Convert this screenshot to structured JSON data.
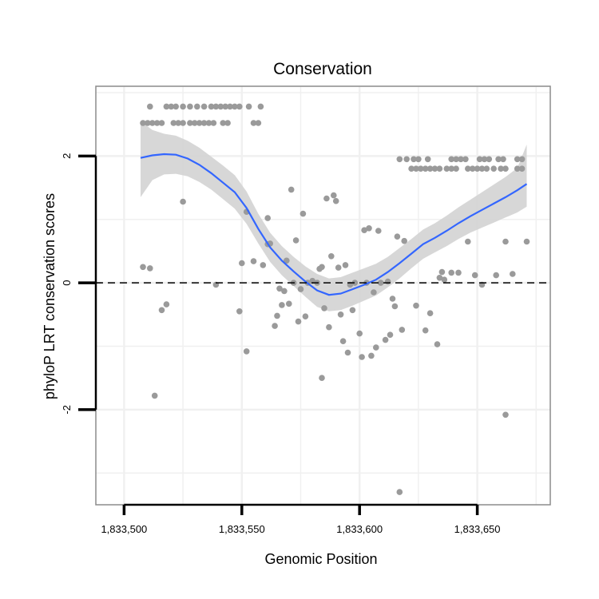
{
  "chart_data": {
    "type": "scatter",
    "title": "Conservation",
    "xlabel": "Genomic Position",
    "ylabel": "phyloP LRT conservation scores",
    "xlim": [
      1833488,
      1833681
    ],
    "ylim": [
      -3.5,
      3.1
    ],
    "x_ticks": [
      {
        "value": 1833500,
        "label": "1,833,500"
      },
      {
        "value": 1833550,
        "label": "1,833,550"
      },
      {
        "value": 1833600,
        "label": "1,833,600"
      },
      {
        "value": 1833650,
        "label": "1,833,650"
      }
    ],
    "y_ticks": [
      {
        "value": -2,
        "label": "-2"
      },
      {
        "value": 0,
        "label": "0"
      },
      {
        "value": 2,
        "label": "2"
      }
    ],
    "x_minor": [
      1833525,
      1833575,
      1833625,
      1833675
    ],
    "y_minor": [
      -3,
      -1,
      1,
      3
    ],
    "grid": true,
    "reference_line": {
      "y": 0,
      "style": "dashed"
    },
    "colors": {
      "points": "#9a9a9a",
      "smooth": "#3366ff",
      "band": "#d3d3d3",
      "grid": "#f0f0f0",
      "panel_border": "#8c8c8c"
    },
    "points": [
      [
        1833508,
        2.52
      ],
      [
        1833510,
        2.52
      ],
      [
        1833512,
        2.52
      ],
      [
        1833514,
        2.52
      ],
      [
        1833516,
        2.52
      ],
      [
        1833521,
        2.52
      ],
      [
        1833523,
        2.52
      ],
      [
        1833525,
        2.52
      ],
      [
        1833528,
        2.52
      ],
      [
        1833530,
        2.52
      ],
      [
        1833532,
        2.52
      ],
      [
        1833534,
        2.52
      ],
      [
        1833536,
        2.52
      ],
      [
        1833538,
        2.52
      ],
      [
        1833542,
        2.52
      ],
      [
        1833544,
        2.52
      ],
      [
        1833555,
        2.52
      ],
      [
        1833557,
        2.52
      ],
      [
        1833511,
        2.78
      ],
      [
        1833518,
        2.78
      ],
      [
        1833520,
        2.78
      ],
      [
        1833522,
        2.78
      ],
      [
        1833525,
        2.78
      ],
      [
        1833528,
        2.78
      ],
      [
        1833531,
        2.78
      ],
      [
        1833534,
        2.78
      ],
      [
        1833537,
        2.78
      ],
      [
        1833539,
        2.78
      ],
      [
        1833541,
        2.78
      ],
      [
        1833543,
        2.78
      ],
      [
        1833545,
        2.78
      ],
      [
        1833547,
        2.78
      ],
      [
        1833549,
        2.78
      ],
      [
        1833553,
        2.78
      ],
      [
        1833558,
        2.78
      ],
      [
        1833617,
        1.95
      ],
      [
        1833620,
        1.95
      ],
      [
        1833623,
        1.95
      ],
      [
        1833625,
        1.95
      ],
      [
        1833629,
        1.95
      ],
      [
        1833639,
        1.95
      ],
      [
        1833641,
        1.95
      ],
      [
        1833643,
        1.95
      ],
      [
        1833645,
        1.95
      ],
      [
        1833651,
        1.95
      ],
      [
        1833653,
        1.95
      ],
      [
        1833655,
        1.95
      ],
      [
        1833659,
        1.95
      ],
      [
        1833661,
        1.95
      ],
      [
        1833667,
        1.95
      ],
      [
        1833669,
        1.95
      ],
      [
        1833622,
        1.8
      ],
      [
        1833624,
        1.8
      ],
      [
        1833626,
        1.8
      ],
      [
        1833628,
        1.8
      ],
      [
        1833630,
        1.8
      ],
      [
        1833632,
        1.8
      ],
      [
        1833634,
        1.8
      ],
      [
        1833637,
        1.8
      ],
      [
        1833639,
        1.8
      ],
      [
        1833641,
        1.8
      ],
      [
        1833646,
        1.8
      ],
      [
        1833648,
        1.8
      ],
      [
        1833650,
        1.8
      ],
      [
        1833652,
        1.8
      ],
      [
        1833654,
        1.8
      ],
      [
        1833657,
        1.8
      ],
      [
        1833660,
        1.8
      ],
      [
        1833662,
        1.8
      ],
      [
        1833667,
        1.8
      ],
      [
        1833669,
        1.8
      ],
      [
        1833508,
        0.25
      ],
      [
        1833511,
        0.23
      ],
      [
        1833513,
        -1.78
      ],
      [
        1833516,
        -0.43
      ],
      [
        1833518,
        -0.34
      ],
      [
        1833525,
        1.28
      ],
      [
        1833539,
        -0.03
      ],
      [
        1833549,
        -0.45
      ],
      [
        1833550,
        0.31
      ],
      [
        1833552,
        1.12
      ],
      [
        1833552,
        -1.08
      ],
      [
        1833555,
        0.34
      ],
      [
        1833559,
        0.28
      ],
      [
        1833561,
        0.61
      ],
      [
        1833561,
        1.02
      ],
      [
        1833562,
        0.62
      ],
      [
        1833564,
        -0.68
      ],
      [
        1833565,
        -0.52
      ],
      [
        1833566,
        -0.09
      ],
      [
        1833567,
        -0.35
      ],
      [
        1833568,
        -0.13
      ],
      [
        1833569,
        0.35
      ],
      [
        1833570,
        -0.33
      ],
      [
        1833571,
        1.47
      ],
      [
        1833572,
        0.0
      ],
      [
        1833573,
        0.67
      ],
      [
        1833574,
        -0.61
      ],
      [
        1833575,
        -0.1
      ],
      [
        1833576,
        1.09
      ],
      [
        1833577,
        -0.53
      ],
      [
        1833578,
        0.0
      ],
      [
        1833580,
        0.03
      ],
      [
        1833582,
        0.0
      ],
      [
        1833583,
        0.22
      ],
      [
        1833584,
        0.25
      ],
      [
        1833584,
        -1.5
      ],
      [
        1833585,
        -0.4
      ],
      [
        1833586,
        1.33
      ],
      [
        1833587,
        -0.7
      ],
      [
        1833588,
        0.42
      ],
      [
        1833589,
        1.38
      ],
      [
        1833590,
        1.29
      ],
      [
        1833591,
        0.24
      ],
      [
        1833592,
        -0.5
      ],
      [
        1833593,
        -0.92
      ],
      [
        1833594,
        0.28
      ],
      [
        1833595,
        -1.1
      ],
      [
        1833596,
        -0.03
      ],
      [
        1833597,
        -0.43
      ],
      [
        1833598,
        0.0
      ],
      [
        1833600,
        -0.8
      ],
      [
        1833601,
        -1.17
      ],
      [
        1833602,
        0.83
      ],
      [
        1833603,
        0.0
      ],
      [
        1833604,
        0.86
      ],
      [
        1833605,
        -1.15
      ],
      [
        1833606,
        -0.15
      ],
      [
        1833607,
        -1.02
      ],
      [
        1833608,
        0.82
      ],
      [
        1833609,
        0.0
      ],
      [
        1833611,
        -0.9
      ],
      [
        1833612,
        0.02
      ],
      [
        1833613,
        -0.82
      ],
      [
        1833614,
        -0.25
      ],
      [
        1833615,
        -0.37
      ],
      [
        1833616,
        0.73
      ],
      [
        1833617,
        -3.3
      ],
      [
        1833618,
        -0.74
      ],
      [
        1833619,
        0.66
      ],
      [
        1833624,
        -0.36
      ],
      [
        1833628,
        -0.75
      ],
      [
        1833630,
        -0.48
      ],
      [
        1833633,
        -0.97
      ],
      [
        1833634,
        0.08
      ],
      [
        1833635,
        0.17
      ],
      [
        1833636,
        0.05
      ],
      [
        1833639,
        0.16
      ],
      [
        1833642,
        0.16
      ],
      [
        1833646,
        0.65
      ],
      [
        1833649,
        0.12
      ],
      [
        1833652,
        -0.03
      ],
      [
        1833658,
        0.12
      ],
      [
        1833662,
        0.65
      ],
      [
        1833662,
        -2.08
      ],
      [
        1833665,
        0.14
      ],
      [
        1833671,
        0.65
      ]
    ],
    "smooth": {
      "x": [
        1833507,
        1833512,
        1833517,
        1833522,
        1833527,
        1833532,
        1833537,
        1833542,
        1833547,
        1833552,
        1833557,
        1833562,
        1833567,
        1833572,
        1833577,
        1833582,
        1833587,
        1833592,
        1833597,
        1833602,
        1833607,
        1833612,
        1833617,
        1833622,
        1833627,
        1833632,
        1833637,
        1833642,
        1833647,
        1833652,
        1833657,
        1833662,
        1833667,
        1833671
      ],
      "y": [
        1.97,
        2.01,
        2.03,
        2.02,
        1.96,
        1.86,
        1.73,
        1.58,
        1.43,
        1.18,
        0.85,
        0.56,
        0.35,
        0.18,
        0.02,
        -0.12,
        -0.19,
        -0.17,
        -0.1,
        -0.03,
        0.05,
        0.17,
        0.31,
        0.46,
        0.61,
        0.71,
        0.82,
        0.94,
        1.05,
        1.15,
        1.25,
        1.35,
        1.46,
        1.56
      ],
      "lower": [
        1.35,
        1.62,
        1.71,
        1.72,
        1.68,
        1.59,
        1.47,
        1.32,
        1.17,
        0.93,
        0.62,
        0.33,
        0.12,
        -0.05,
        -0.22,
        -0.38,
        -0.45,
        -0.43,
        -0.36,
        -0.28,
        -0.2,
        -0.07,
        0.07,
        0.23,
        0.38,
        0.48,
        0.58,
        0.69,
        0.79,
        0.87,
        0.95,
        1.03,
        1.11,
        1.2
      ],
      "upper": [
        2.55,
        2.41,
        2.35,
        2.32,
        2.24,
        2.13,
        1.99,
        1.85,
        1.7,
        1.44,
        1.09,
        0.79,
        0.58,
        0.41,
        0.26,
        0.14,
        0.07,
        0.09,
        0.16,
        0.23,
        0.3,
        0.41,
        0.55,
        0.69,
        0.84,
        0.94,
        1.06,
        1.19,
        1.31,
        1.43,
        1.55,
        1.67,
        1.81,
        2.18
      ]
    }
  }
}
